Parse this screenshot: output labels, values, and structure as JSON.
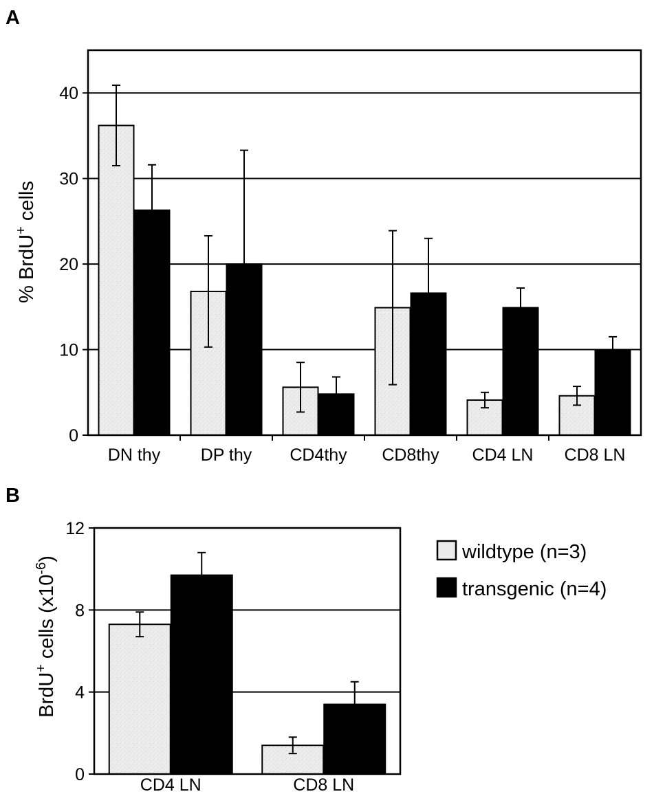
{
  "colors": {
    "wildtype": "#ebebeb",
    "transgenic": "#000000",
    "grid": "#000000"
  },
  "legend": {
    "items": [
      {
        "label": "wildtype (n=3)",
        "color": "#ebebeb"
      },
      {
        "label": "transgenic (n=4)",
        "color": "#000000"
      }
    ]
  },
  "chart_data": [
    {
      "panel": "A",
      "type": "bar",
      "categories": [
        "DN thy",
        "DP thy",
        "CD4thy",
        "CD8thy",
        "CD4 LN",
        "CD8 LN"
      ],
      "series": [
        {
          "name": "wildtype (n=3)",
          "values": [
            36.2,
            16.8,
            5.6,
            14.9,
            4.1,
            4.6
          ],
          "errors": [
            4.7,
            6.5,
            2.9,
            9.0,
            0.9,
            1.1
          ]
        },
        {
          "name": "transgenic (n=4)",
          "values": [
            26.3,
            20.0,
            4.8,
            16.6,
            14.9,
            10.0
          ],
          "errors": [
            5.3,
            13.3,
            2.0,
            6.4,
            2.3,
            1.5
          ]
        }
      ],
      "ylabel_main": "% BrdU",
      "ylabel_sup": "+",
      "ylabel_tail": " cells",
      "ylim": [
        0,
        45
      ],
      "yticks": [
        0,
        10,
        20,
        30,
        40
      ],
      "grid": true
    },
    {
      "panel": "B",
      "type": "bar",
      "categories": [
        "CD4 LN",
        "CD8 LN"
      ],
      "series": [
        {
          "name": "wildtype (n=3)",
          "values": [
            7.3,
            1.4
          ],
          "errors": [
            0.6,
            0.4
          ]
        },
        {
          "name": "transgenic (n=4)",
          "values": [
            9.7,
            3.4
          ],
          "errors": [
            1.1,
            1.1
          ]
        }
      ],
      "ylabel_main": "BrdU",
      "ylabel_sup": "+",
      "ylabel_tail": " cells (x10",
      "ylabel_sup2": "-6",
      "ylabel_end": ")",
      "ylim": [
        0,
        12
      ],
      "yticks": [
        0,
        4,
        8,
        12
      ],
      "grid": true
    }
  ]
}
